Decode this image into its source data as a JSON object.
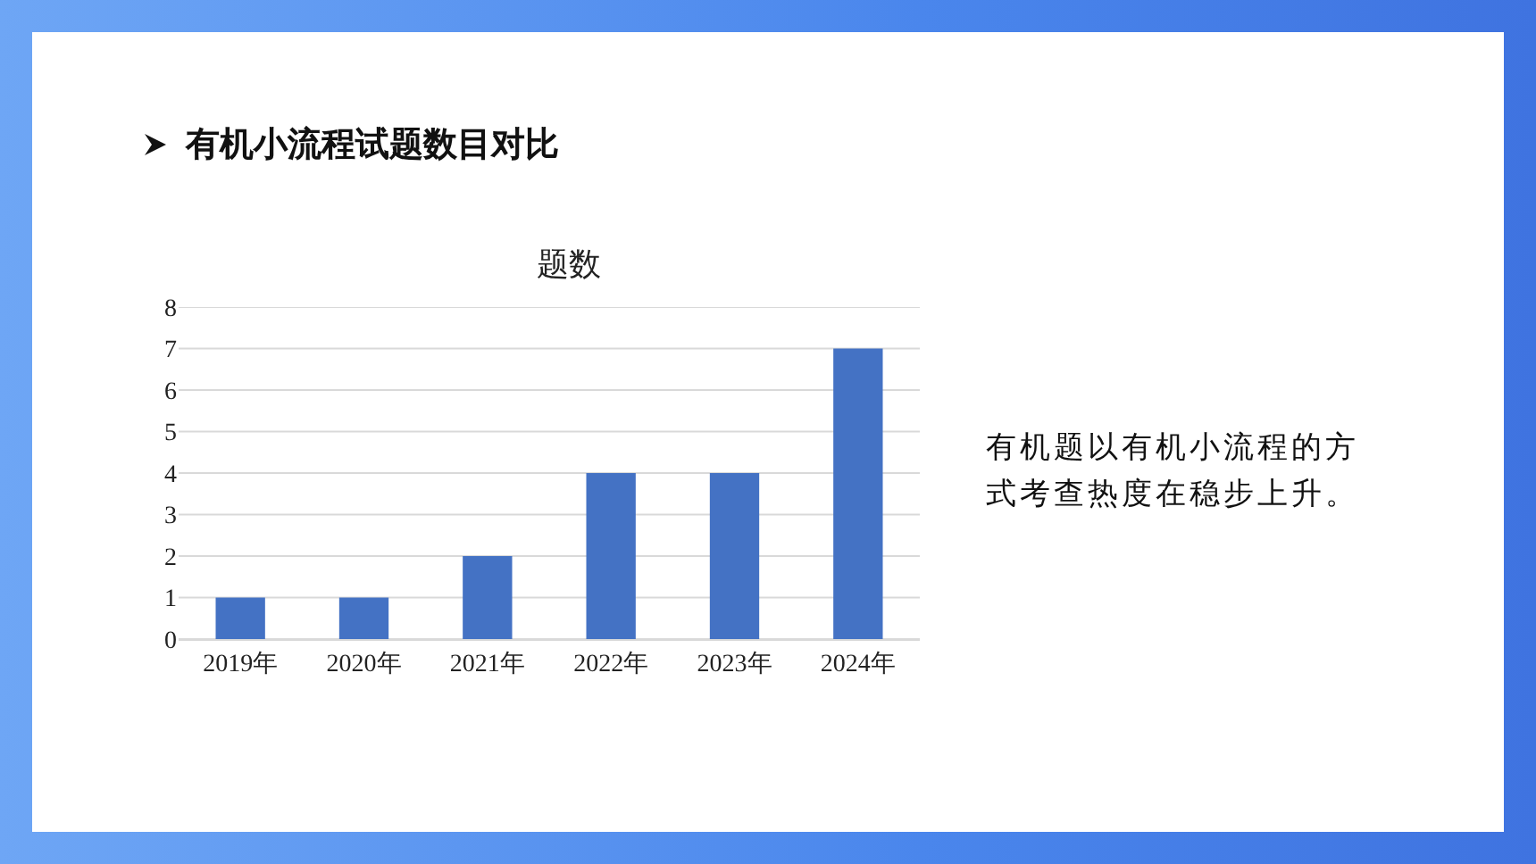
{
  "chart_data": {
    "type": "bar",
    "title": "题数",
    "annotations": [
      "有机小流程试题数目对比",
      "有机题以有机小流程的方式考查热度在稳步上升。"
    ],
    "categories": [
      "2019年",
      "2020年",
      "2021年",
      "2022年",
      "2023年",
      "2024年"
    ],
    "values": [
      1,
      1,
      2,
      4,
      4,
      7
    ],
    "color": "#4472c4",
    "ylim": [
      0,
      8
    ],
    "yticks": [
      0,
      1,
      2,
      3,
      4,
      5,
      6,
      7,
      8
    ],
    "grid": "y"
  }
}
